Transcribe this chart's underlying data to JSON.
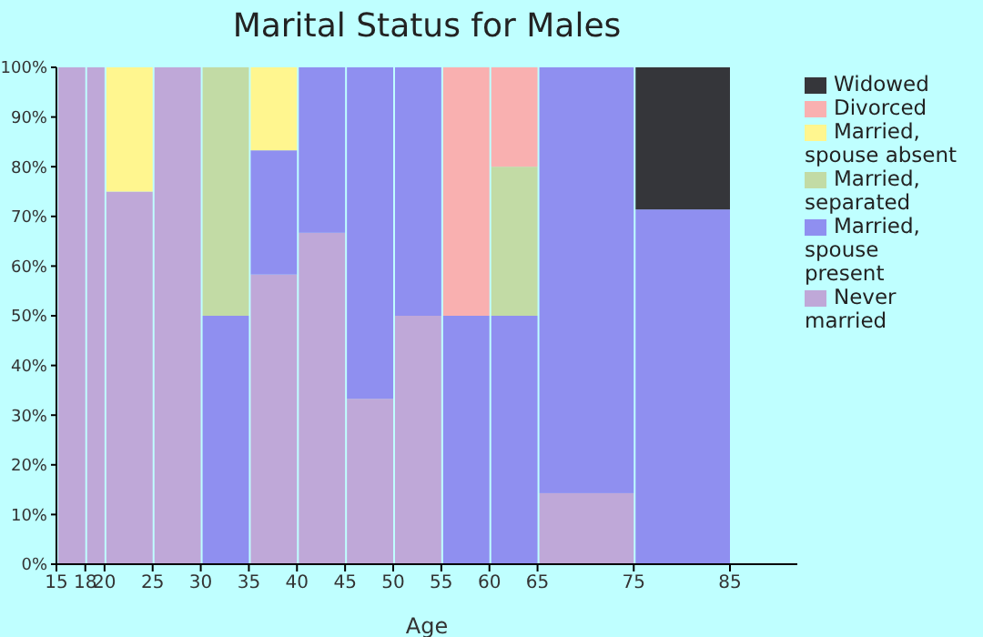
{
  "chart_data": {
    "type": "bar",
    "stacked": true,
    "title": "Marital Status for Males",
    "xlabel": "Age",
    "x": [
      16.5,
      19,
      22.5,
      27.5,
      32.5,
      37.5,
      42.5,
      47.5,
      52.5,
      57.5,
      62.5,
      70,
      80
    ],
    "xlim": [
      15,
      92
    ],
    "xticks": [
      15,
      18,
      20,
      25,
      30,
      35,
      40,
      45,
      50,
      55,
      60,
      65,
      75,
      85
    ],
    "ylim": [
      0,
      100
    ],
    "yticks": [
      {
        "value": 0,
        "label": "0%"
      },
      {
        "value": 10,
        "label": "10%"
      },
      {
        "value": 20,
        "label": "20%"
      },
      {
        "value": 30,
        "label": "30%"
      },
      {
        "value": 40,
        "label": "40%"
      },
      {
        "value": 50,
        "label": "50%"
      },
      {
        "value": 60,
        "label": "60%"
      },
      {
        "value": 70,
        "label": "70%"
      },
      {
        "value": 80,
        "label": "80%"
      },
      {
        "value": 90,
        "label": "90%"
      },
      {
        "value": 100,
        "label": "100%"
      }
    ],
    "legend": "right",
    "grid": false,
    "series": [
      {
        "name": "Never married",
        "color": "#bfa8d8",
        "values": [
          100,
          100,
          75,
          100,
          0,
          58.3,
          66.7,
          33.3,
          50,
          0,
          0,
          14.3,
          0
        ]
      },
      {
        "name": "Married, spouse present",
        "color": "#8f8ff0",
        "values": [
          0,
          0,
          0,
          0,
          50,
          25,
          33.3,
          66.7,
          50,
          50,
          50,
          85.7,
          71.4
        ]
      },
      {
        "name": "Married, separated",
        "color": "#c2dba5",
        "values": [
          0,
          0,
          0,
          0,
          50,
          0,
          0,
          0,
          0,
          0,
          30,
          0,
          0
        ]
      },
      {
        "name": "Married, spouse absent",
        "color": "#fff68f",
        "values": [
          0,
          0,
          25,
          0,
          0,
          16.7,
          0,
          0,
          0,
          0,
          0,
          0,
          0
        ]
      },
      {
        "name": "Divorced",
        "color": "#f9b0b0",
        "values": [
          0,
          0,
          0,
          0,
          0,
          0,
          0,
          0,
          0,
          50,
          20,
          0,
          0
        ]
      },
      {
        "name": "Widowed",
        "color": "#35363a",
        "values": [
          0,
          0,
          0,
          0,
          0,
          0,
          0,
          0,
          0,
          0,
          0,
          0,
          28.6
        ]
      }
    ]
  }
}
